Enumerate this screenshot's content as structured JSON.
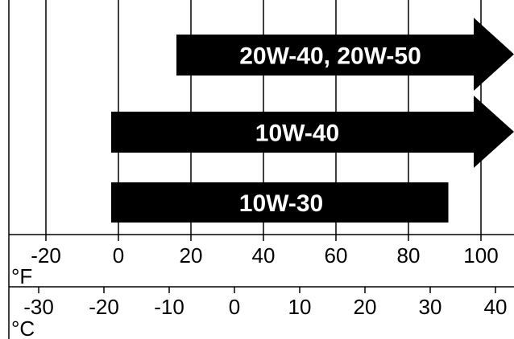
{
  "chart_data": {
    "type": "bar",
    "orientation": "horizontal",
    "x_unit": "°F",
    "secondary_unit": "°C",
    "xlim": [
      -30,
      104
    ],
    "x_ticks": [
      -20,
      0,
      20,
      40,
      60,
      80,
      100
    ],
    "secondary_ticks": [
      -30,
      -20,
      -10,
      0,
      10,
      20,
      30,
      40
    ],
    "grid": true,
    "series": [
      {
        "name": "20W-40, 20W-50",
        "start": 16,
        "end": null,
        "open_ended": true
      },
      {
        "name": "10W-40",
        "start": -2,
        "end": null,
        "open_ended": true
      },
      {
        "name": "10W-30",
        "start": -2,
        "end": 91,
        "open_ended": false
      }
    ]
  }
}
